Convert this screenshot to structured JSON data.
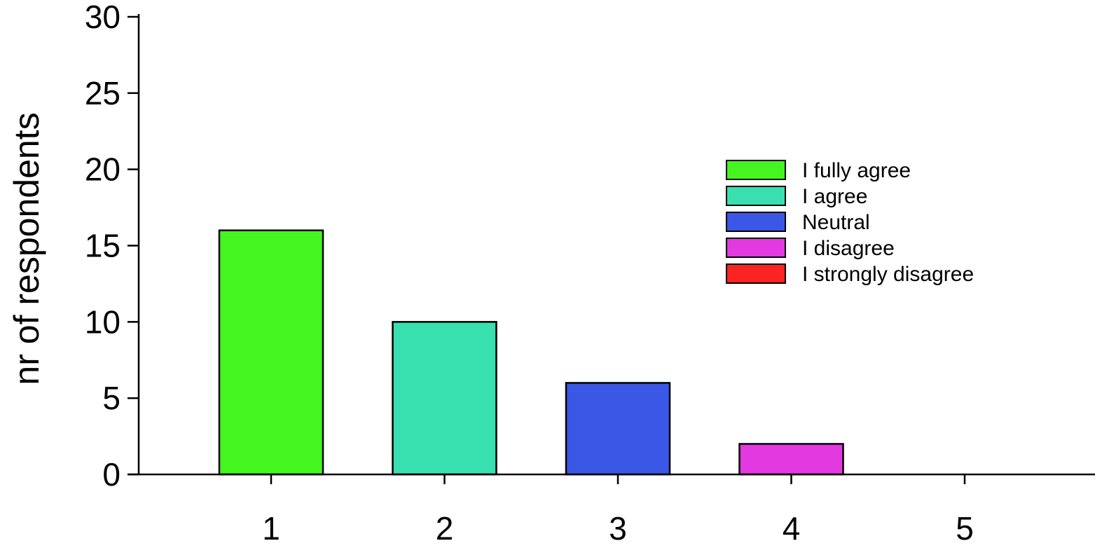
{
  "chart_data": {
    "type": "bar",
    "title": "",
    "xlabel": "",
    "ylabel": "nr of respondents",
    "categories": [
      "1",
      "2",
      "3",
      "4",
      "5"
    ],
    "values": [
      16,
      10,
      6,
      2,
      0
    ],
    "ylim": [
      0,
      30
    ],
    "yticks": [
      0,
      5,
      10,
      15,
      20,
      25,
      30
    ],
    "grid": false,
    "legend_position": "right",
    "legend": [
      {
        "label": "I fully agree",
        "color": "#44f520"
      },
      {
        "label": "I agree",
        "color": "#38e0b0"
      },
      {
        "label": "Neutral",
        "color": "#3a57e6"
      },
      {
        "label": "I disagree",
        "color": "#e23ae0"
      },
      {
        "label": "I strongly disagree",
        "color": "#fc2323"
      }
    ],
    "bar_colors": [
      "#44f520",
      "#38e0b0",
      "#3a57e6",
      "#e23ae0",
      "#fc2323"
    ]
  }
}
